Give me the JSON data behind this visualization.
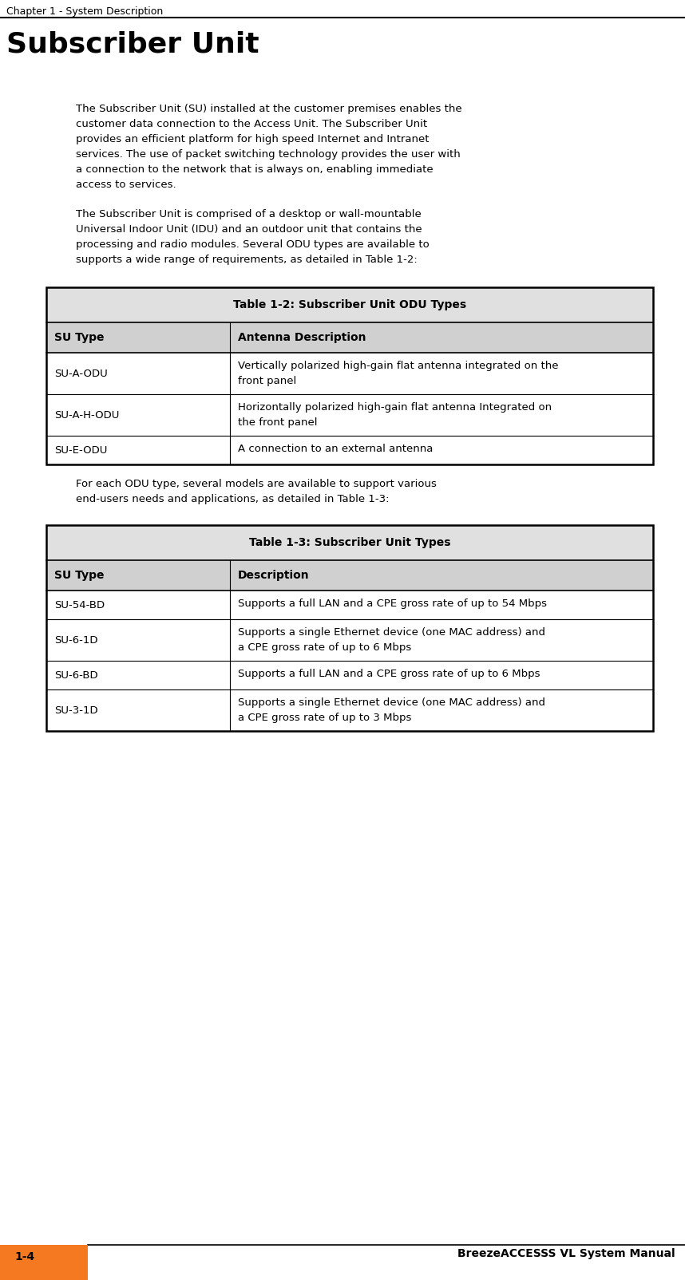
{
  "page_title": "Chapter 1 - System Description",
  "section_title": "Subscriber Unit",
  "para1_lines": [
    "The Subscriber Unit (SU) installed at the customer premises enables the",
    "customer data connection to the Access Unit. The Subscriber Unit",
    "provides an efficient platform for high speed Internet and Intranet",
    "services. The use of packet switching technology provides the user with",
    "a connection to the network that is always on, enabling immediate",
    "access to services."
  ],
  "para2_lines": [
    "The Subscriber Unit is comprised of a desktop or wall-mountable",
    "Universal Indoor Unit (IDU) and an outdoor unit that contains the",
    "processing and radio modules. Several ODU types are available to",
    "supports a wide range of requirements, as detailed in Table 1-2:"
  ],
  "table1_title": "Table 1-2: Subscriber Unit ODU Types",
  "table1_col1_header": "SU Type",
  "table1_col2_header": "Antenna Description",
  "table1_rows": [
    [
      "SU-A-ODU",
      "Vertically polarized high-gain flat antenna integrated on the\nfront panel"
    ],
    [
      "SU-A-H-ODU",
      "Horizontally polarized high-gain flat antenna Integrated on\nthe front panel"
    ],
    [
      "SU-E-ODU",
      "A connection to an external antenna"
    ]
  ],
  "para3_lines": [
    "For each ODU type, several models are available to support various",
    "end-users needs and applications, as detailed in Table 1-3:"
  ],
  "table2_title": "Table 1-3: Subscriber Unit Types",
  "table2_col1_header": "SU Type",
  "table2_col2_header": "Description",
  "table2_rows": [
    [
      "SU-54-BD",
      "Supports a full LAN and a CPE gross rate of up to 54 Mbps"
    ],
    [
      "SU-6-1D",
      "Supports a single Ethernet device (one MAC address) and\na CPE gross rate of up to 6 Mbps"
    ],
    [
      "SU-6-BD",
      "Supports a full LAN and a CPE gross rate of up to 6 Mbps"
    ],
    [
      "SU-3-1D",
      "Supports a single Ethernet device (one MAC address) and\na CPE gross rate of up to 3 Mbps"
    ]
  ],
  "footer_text": "BreezeACCESSS VL System Manual",
  "footer_page": "1-4",
  "orange_color": "#F47920",
  "gray_title_bg": "#E0E0E0",
  "gray_header_bg": "#D0D0D0"
}
